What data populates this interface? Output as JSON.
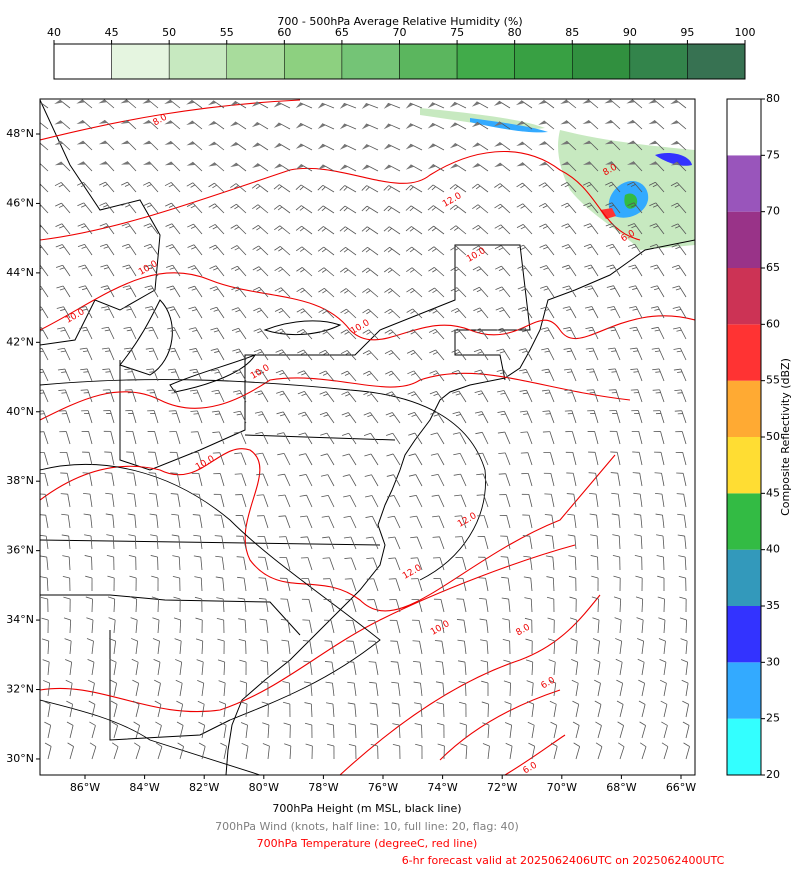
{
  "rh_colorbar": {
    "title": "700 - 500hPa Average Relative Humidity (%)",
    "ticks": [
      40,
      45,
      50,
      55,
      60,
      65,
      70,
      75,
      80,
      85,
      90,
      95,
      100
    ],
    "colors": [
      "#ffffff",
      "#e5f5e0",
      "#c7e9c0",
      "#a8dc9c",
      "#8dd080",
      "#74c476",
      "#5bb65e",
      "#41ab4a",
      "#38a043",
      "#31903f",
      "#33844b",
      "#377252"
    ]
  },
  "reflectivity_colorbar": {
    "title": "Composite Reflectivity (dBZ)",
    "ticks": [
      20,
      25,
      30,
      35,
      40,
      45,
      50,
      55,
      60,
      65,
      70,
      75,
      80
    ],
    "colors": [
      "#33ffff",
      "#33aaff",
      "#3333ff",
      "#3399bb",
      "#33bb44",
      "#ffdd33",
      "#ffaa33",
      "#ff3333",
      "#cc3355",
      "#993388",
      "#9955bb",
      "#ffffff"
    ]
  },
  "map": {
    "lon_labels": [
      "86°W",
      "84°W",
      "82°W",
      "80°W",
      "78°W",
      "76°W",
      "74°W",
      "72°W",
      "70°W",
      "68°W",
      "66°W"
    ],
    "lat_labels": [
      "48°N",
      "46°N",
      "44°N",
      "42°N",
      "40°N",
      "38°N",
      "36°N",
      "34°N",
      "32°N",
      "30°N"
    ],
    "contour_labels": [
      "8.0",
      "10.0",
      "10.0",
      "10.0",
      "10.0",
      "10.0",
      "12.0",
      "12.0",
      "12.0",
      "10.0",
      "8.0",
      "6.0",
      "6.0",
      "8.0",
      "6.0",
      "10.0"
    ]
  },
  "captions": [
    {
      "text": "700hPa Height (m MSL, black line)",
      "color": "#000000"
    },
    {
      "text": "700hPa Wind (knots, half line: 10, full line: 20, flag: 40)",
      "color": "#808080"
    },
    {
      "text": "700hPa Temperature (degreeC, red line)",
      "color": "#ff0000"
    },
    {
      "text": "6-hr forecast valid at 2025062406UTC on 2025062400UTC",
      "color": "#ff0000"
    }
  ]
}
